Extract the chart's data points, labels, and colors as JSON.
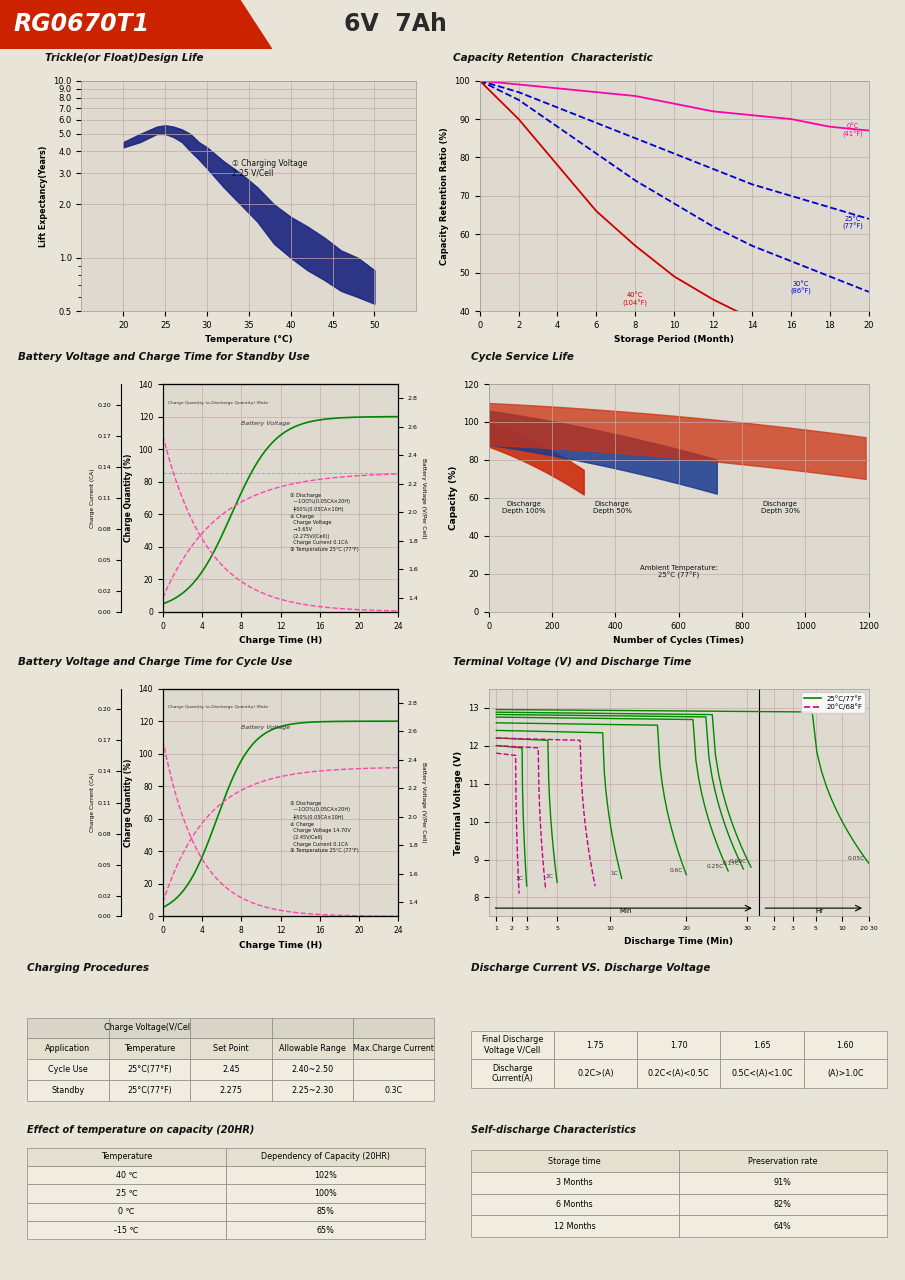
{
  "title_model": "RG0670T1",
  "title_spec": "6V  7Ah",
  "header_bg": "#cc2200",
  "page_bg": "#e8e4d8",
  "inner_bg": "#dedad0",
  "grid_color": "#c8a8a8",
  "trickle_title": "Trickle(or Float)Design Life",
  "trickle_xlabel": "Temperature (°C)",
  "trickle_ylabel": "Lift Expectancy(Years)",
  "trickle_annotation": "① Charging Voltage\n2.25 V/Cell",
  "trickle_curve_x": [
    20,
    22,
    24,
    25,
    26,
    27,
    28,
    29,
    30,
    32,
    34,
    36,
    38,
    40,
    42,
    44,
    46,
    48,
    50
  ],
  "trickle_curve_top": [
    4.5,
    5.0,
    5.5,
    5.6,
    5.5,
    5.3,
    5.0,
    4.5,
    4.2,
    3.5,
    3.0,
    2.5,
    2.0,
    1.7,
    1.5,
    1.3,
    1.1,
    1.0,
    0.85
  ],
  "trickle_curve_bot": [
    4.2,
    4.5,
    5.0,
    5.0,
    4.8,
    4.5,
    4.0,
    3.6,
    3.2,
    2.5,
    2.0,
    1.6,
    1.2,
    1.0,
    0.85,
    0.75,
    0.65,
    0.6,
    0.55
  ],
  "trickle_curve_color": "#1a237e",
  "capret_title": "Capacity Retention  Characteristic",
  "capret_xlabel": "Storage Period (Month)",
  "capret_ylabel": "Capacity Retention Ratio (%)",
  "bv_standby_title": "Battery Voltage and Charge Time for Standby Use",
  "bv_standby_xlabel": "Charge Time (H)",
  "cycle_service_title": "Cycle Service Life",
  "cycle_service_xlabel": "Number of Cycles (Times)",
  "cycle_service_ylabel": "Capacity (%)",
  "bv_cycle_title": "Battery Voltage and Charge Time for Cycle Use",
  "bv_cycle_xlabel": "Charge Time (H)",
  "terminal_title": "Terminal Voltage (V) and Discharge Time",
  "terminal_xlabel": "Discharge Time (Min)",
  "terminal_ylabel": "Terminal Voltage (V)",
  "charging_proc_title": "Charging Procedures",
  "discharge_vs_title": "Discharge Current VS. Discharge Voltage",
  "temp_capacity_title": "Effect of temperature on capacity (20HR)",
  "self_discharge_title": "Self-discharge Characteristics",
  "cp_rows": [
    [
      "Cycle Use",
      "25°C(77°F)",
      "2.45",
      "2.40~2.50",
      ""
    ],
    [
      "Standby",
      "25°C(77°F)",
      "2.275",
      "2.25~2.30",
      "0.3C"
    ]
  ],
  "dv_fdv": [
    "1.75",
    "1.70",
    "1.65",
    "1.60"
  ],
  "dv_dc": [
    "0.2C>(A)",
    "0.2C<(A)<0.5C",
    "0.5C<(A)<1.0C",
    "(A)>1.0C"
  ],
  "tc_rows": [
    [
      "40 ℃",
      "102%"
    ],
    [
      "25 ℃",
      "100%"
    ],
    [
      "0 ℃",
      "85%"
    ],
    [
      "-15 ℃",
      "65%"
    ]
  ],
  "sd_rows": [
    [
      "3 Months",
      "91%"
    ],
    [
      "6 Months",
      "82%"
    ],
    [
      "12 Months",
      "64%"
    ]
  ]
}
